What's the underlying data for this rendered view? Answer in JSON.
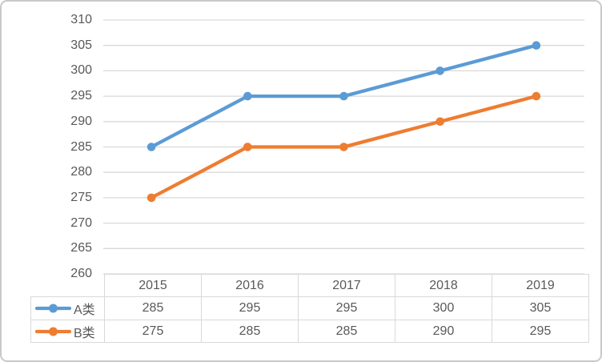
{
  "chart_data": {
    "type": "line",
    "title": "",
    "xlabel": "",
    "ylabel": "",
    "categories": [
      "2015",
      "2016",
      "2017",
      "2018",
      "2019"
    ],
    "series": [
      {
        "name": "A类",
        "color": "#5B9BD5",
        "values": [
          285,
          295,
          295,
          300,
          305
        ]
      },
      {
        "name": "B类",
        "color": "#ED7D31",
        "values": [
          275,
          285,
          285,
          290,
          295
        ]
      }
    ],
    "ylim": [
      260,
      310
    ],
    "ytick_step": 5,
    "ytick_labels": [
      "310",
      "305",
      "300",
      "295",
      "290",
      "285",
      "280",
      "275",
      "270",
      "265",
      "260"
    ],
    "grid": true,
    "gridline_color": "#d9d9d9",
    "axis_text_color": "#595959",
    "table_border_color": "#d9d9d9",
    "frame_border_color": "#c9c9c9",
    "legend_position": "table-left",
    "data_table_visible": true
  }
}
